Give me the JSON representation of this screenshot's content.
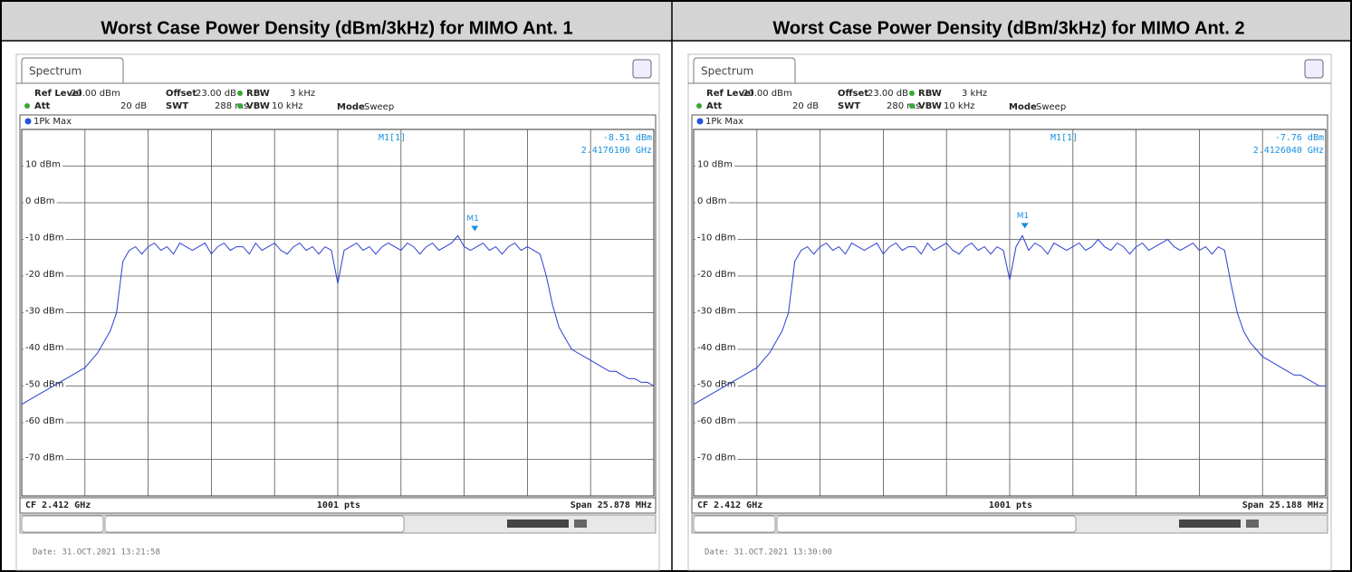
{
  "chart_data": [
    {
      "type": "line",
      "title": "Worst Case Power Density (dBm/3kHz) for MIMO Ant. 1",
      "tab": "Spectrum",
      "ref_level_label": "Ref Level",
      "ref_level": "20.00 dBm",
      "offset_label": "Offset",
      "offset": "23.00 dB",
      "rbw_label": "RBW",
      "rbw": "3 kHz",
      "att_label": "Att",
      "att": "20 dB",
      "swt_label": "SWT",
      "swt": "288 ms",
      "vbw_label": "VBW",
      "vbw": "10 kHz",
      "mode_label": "Mode",
      "mode": "Sweep",
      "trace_label": "1Pk Max",
      "points_label": "1001 pts",
      "date": "Date: 31.OCT.2021  13:21:58",
      "center": 2.412,
      "center_label": "CF 2.412 GHz",
      "span": 25.878,
      "span_label": "Span 25.878 MHz",
      "marker": {
        "name": "M1",
        "readout": "M1[1]",
        "value": -8.51,
        "value_label": "-8.51 dBm",
        "freq": 2.41761,
        "freq_label": "2.4176100 GHz"
      },
      "ylim": [
        -80,
        20
      ],
      "yticks": [
        {
          "value": 10,
          "label": "10 dBm"
        },
        {
          "value": 0,
          "label": "0 dBm"
        },
        {
          "value": -10,
          "label": "-10 dBm"
        },
        {
          "value": -20,
          "label": "-20 dBm"
        },
        {
          "value": -30,
          "label": "-30 dBm"
        },
        {
          "value": -40,
          "label": "-40 dBm"
        },
        {
          "value": -50,
          "label": "-50 dBm"
        },
        {
          "value": -60,
          "label": "-60 dBm"
        },
        {
          "value": -70,
          "label": "-70 dBm"
        }
      ],
      "color": "#2b3fd0",
      "values": [
        -55,
        -54,
        -53,
        -52,
        -51,
        -50,
        -49,
        -48,
        -47,
        -46,
        -45,
        -43,
        -41,
        -38,
        -35,
        -30,
        -16,
        -13,
        -12,
        -14,
        -12,
        -11,
        -13,
        -12,
        -14,
        -11,
        -12,
        -13,
        -12,
        -11,
        -14,
        -12,
        -11,
        -13,
        -12,
        -12,
        -14,
        -11,
        -13,
        -12,
        -11,
        -13,
        -14,
        -12,
        -11,
        -13,
        -12,
        -14,
        -12,
        -13,
        -22,
        -13,
        -12,
        -11,
        -13,
        -12,
        -14,
        -12,
        -11,
        -12,
        -13,
        -11,
        -12,
        -14,
        -12,
        -11,
        -13,
        -12,
        -11,
        -9,
        -12,
        -13,
        -12,
        -11,
        -13,
        -12,
        -14,
        -12,
        -11,
        -13,
        -12,
        -13,
        -14,
        -20,
        -28,
        -34,
        -37,
        -40,
        -41,
        -42,
        -43,
        -44,
        -45,
        -46,
        -46,
        -47,
        -48,
        -48,
        -49,
        -49,
        -50
      ]
    },
    {
      "type": "line",
      "title": "Worst Case Power Density (dBm/3kHz) for MIMO Ant. 2",
      "tab": "Spectrum",
      "ref_level_label": "Ref Level",
      "ref_level": "20.00 dBm",
      "offset_label": "Offset",
      "offset": "23.00 dB",
      "rbw_label": "RBW",
      "rbw": "3 kHz",
      "att_label": "Att",
      "att": "20 dB",
      "swt_label": "SWT",
      "swt": "280 ms",
      "vbw_label": "VBW",
      "vbw": "10 kHz",
      "mode_label": "Mode",
      "mode": "Sweep",
      "trace_label": "1Pk Max",
      "points_label": "1001 pts",
      "date": "Date: 31.OCT.2021  13:30:00",
      "center": 2.412,
      "center_label": "CF 2.412 GHz",
      "span": 25.188,
      "span_label": "Span 25.188 MHz",
      "marker": {
        "name": "M1",
        "readout": "M1[1]",
        "value": -7.76,
        "value_label": "-7.76 dBm",
        "freq": 2.412604,
        "freq_label": "2.4126040 GHz"
      },
      "ylim": [
        -80,
        20
      ],
      "yticks": [
        {
          "value": 10,
          "label": "10 dBm"
        },
        {
          "value": 0,
          "label": "0 dBm"
        },
        {
          "value": -10,
          "label": "-10 dBm"
        },
        {
          "value": -20,
          "label": "-20 dBm"
        },
        {
          "value": -30,
          "label": "-30 dBm"
        },
        {
          "value": -40,
          "label": "-40 dBm"
        },
        {
          "value": -50,
          "label": "-50 dBm"
        },
        {
          "value": -60,
          "label": "-60 dBm"
        },
        {
          "value": -70,
          "label": "-70 dBm"
        }
      ],
      "color": "#2b3fd0",
      "values": [
        -55,
        -54,
        -53,
        -52,
        -51,
        -50,
        -49,
        -48,
        -47,
        -46,
        -45,
        -43,
        -41,
        -38,
        -35,
        -30,
        -16,
        -13,
        -12,
        -14,
        -12,
        -11,
        -13,
        -12,
        -14,
        -11,
        -12,
        -13,
        -12,
        -11,
        -14,
        -12,
        -11,
        -13,
        -12,
        -12,
        -14,
        -11,
        -13,
        -12,
        -11,
        -13,
        -14,
        -12,
        -11,
        -13,
        -12,
        -14,
        -12,
        -13,
        -21,
        -12,
        -9,
        -13,
        -11,
        -12,
        -14,
        -11,
        -12,
        -13,
        -12,
        -11,
        -13,
        -12,
        -10,
        -12,
        -13,
        -11,
        -12,
        -14,
        -12,
        -11,
        -13,
        -12,
        -11,
        -10,
        -12,
        -13,
        -12,
        -11,
        -13,
        -12,
        -14,
        -12,
        -13,
        -22,
        -30,
        -35,
        -38,
        -40,
        -42,
        -43,
        -44,
        -45,
        -46,
        -47,
        -47,
        -48,
        -49,
        -50,
        -50
      ]
    }
  ]
}
